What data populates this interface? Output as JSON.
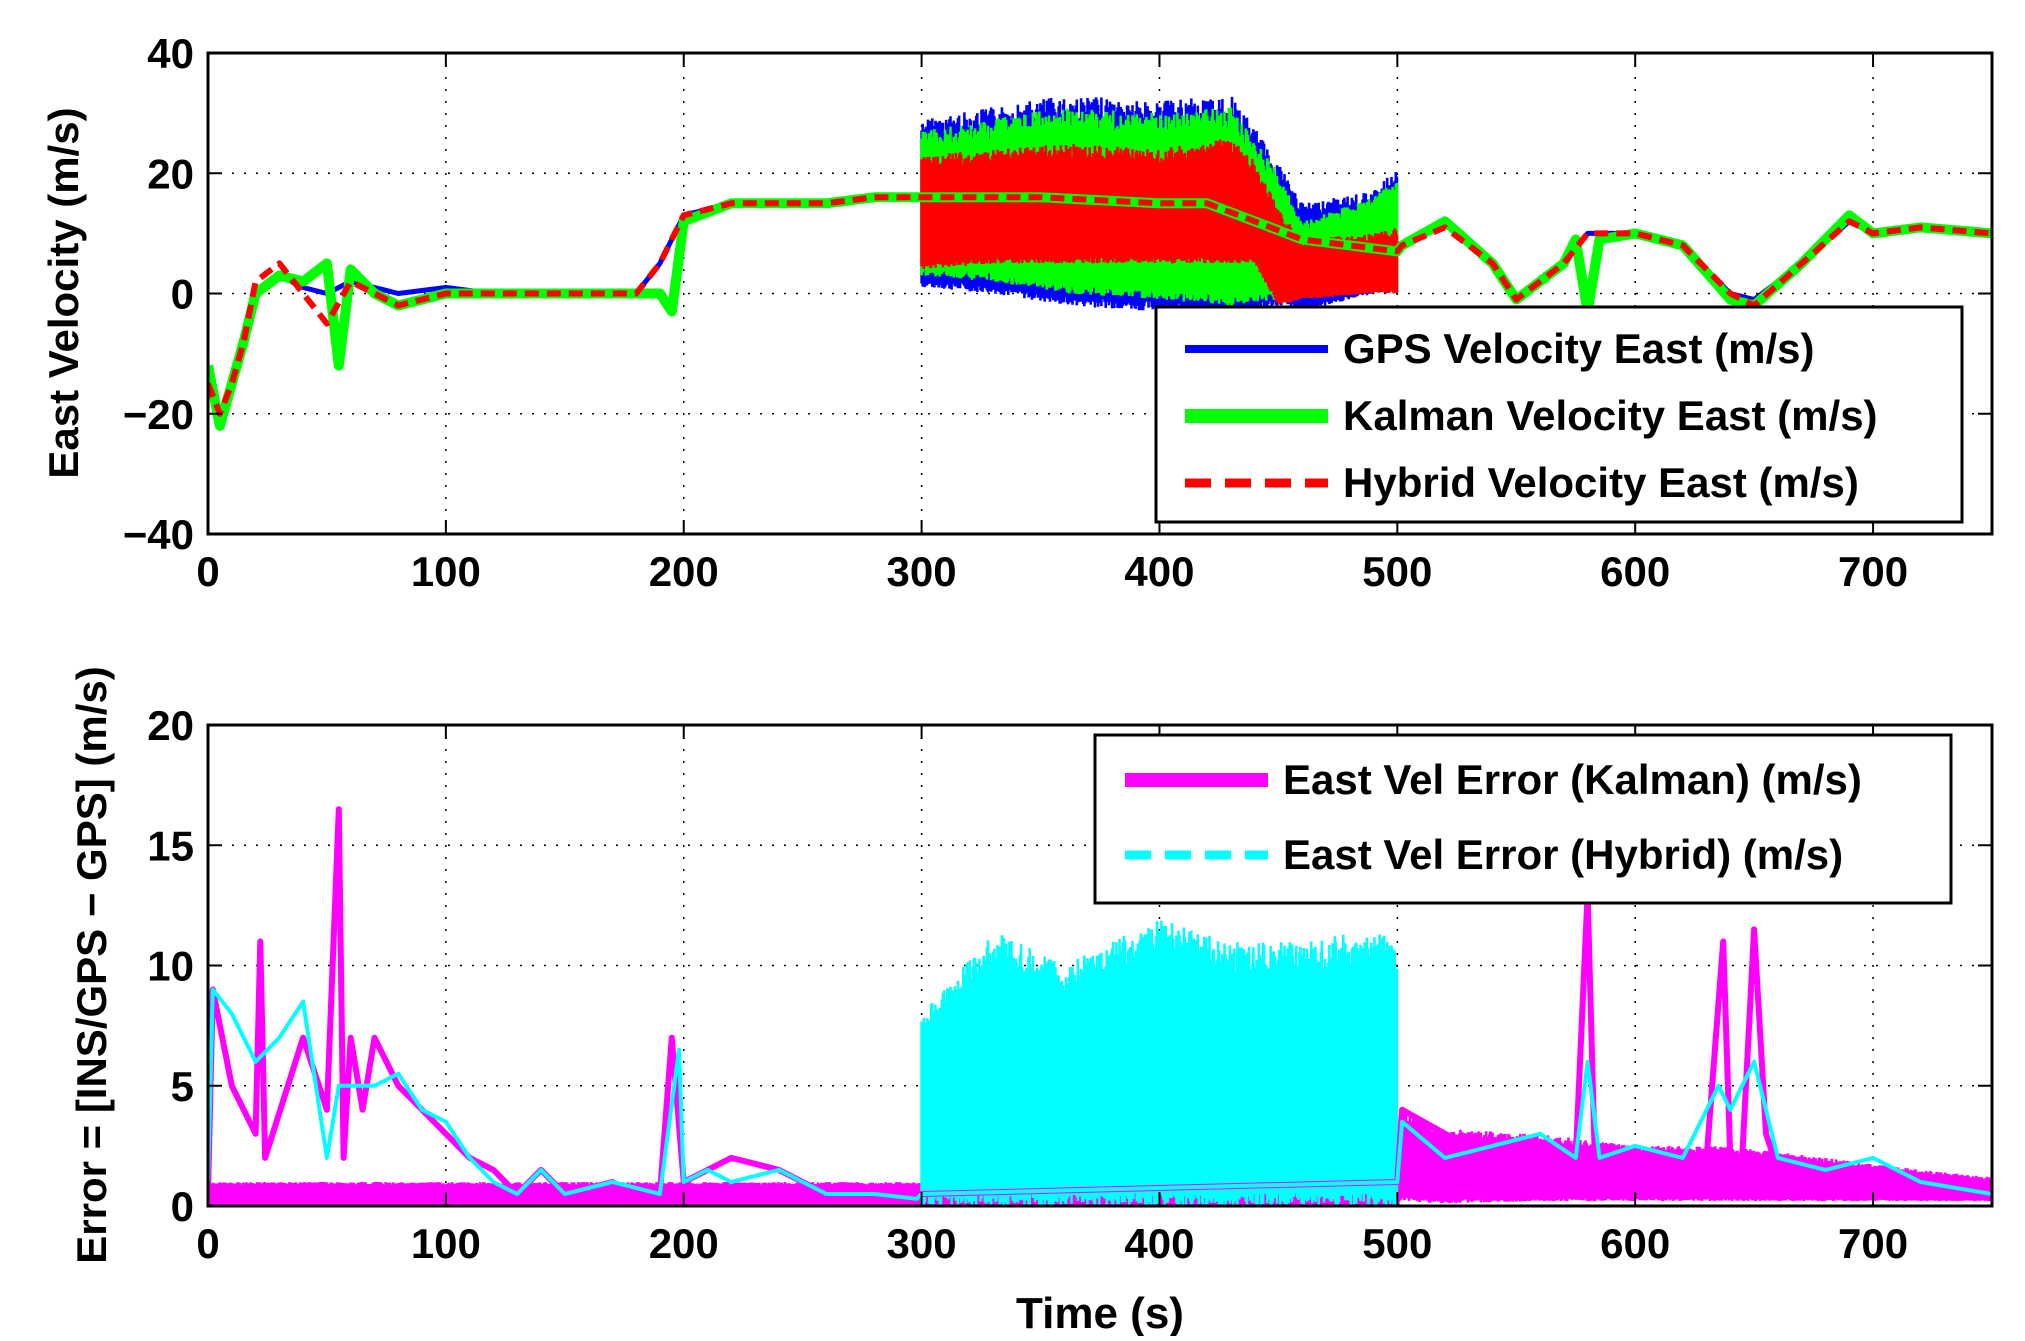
{
  "figure": {
    "background": "#ffffff"
  },
  "chart_data": [
    {
      "type": "line",
      "ylabel": "East Velocity (m/s)",
      "xlabel": "",
      "xlim": [
        0,
        750
      ],
      "ylim": [
        -40,
        40
      ],
      "xticks": [
        0,
        100,
        200,
        300,
        400,
        500,
        600,
        700
      ],
      "yticks": [
        -40,
        -20,
        0,
        20,
        40
      ],
      "xtick_labels": [
        "0",
        "100",
        "200",
        "300",
        "400",
        "500",
        "600",
        "700"
      ],
      "ytick_labels": [
        "−40",
        "−20",
        "0",
        "20",
        "40"
      ],
      "grid": true,
      "legend_position": "lower-right",
      "legend": [
        {
          "label": "GPS Velocity East (m/s)",
          "color": "#0000ff",
          "style": "solid"
        },
        {
          "label": "Kalman Velocity East (m/s)",
          "color": "#00ff00",
          "style": "solid"
        },
        {
          "label": "Hybrid Velocity East (m/s)",
          "color": "#ff0000",
          "style": "dashed"
        }
      ],
      "series": [
        {
          "name": "GPS Velocity East (m/s)",
          "color": "#0000ff",
          "width": 5,
          "x": [
            0,
            5,
            10,
            15,
            20,
            30,
            40,
            50,
            60,
            70,
            80,
            100,
            120,
            150,
            180,
            190,
            200,
            220,
            240,
            260,
            280,
            299,
            300,
            350,
            400,
            420,
            440,
            460,
            480,
            500,
            502,
            520,
            540,
            550,
            570,
            580,
            600,
            620,
            640,
            650,
            670,
            690,
            700,
            720,
            750
          ],
          "y": [
            -15,
            -20,
            -15,
            -8,
            0,
            3,
            1,
            0,
            2,
            1,
            0,
            1,
            0,
            0,
            0,
            5,
            13,
            15,
            15,
            15,
            16,
            16,
            16,
            16,
            15,
            15,
            12,
            9,
            8,
            7,
            8,
            12,
            5,
            -1,
            5,
            10,
            10,
            8,
            0,
            -1,
            5,
            12,
            10,
            11,
            10
          ],
          "band": {
            "x": [
              300,
              330,
              360,
              400,
              430,
              450,
              460,
              490,
              500
            ],
            "upper": [
              29,
              31,
              33,
              32,
              33,
              22,
              15,
              17,
              21
            ],
            "lower": [
              1,
              0,
              -2,
              -3,
              -4,
              -2,
              -3,
              0,
              0
            ]
          }
        },
        {
          "name": "Kalman Velocity East (m/s)",
          "color": "#00ff00",
          "width": 10,
          "x": [
            0,
            5,
            10,
            15,
            20,
            30,
            40,
            50,
            55,
            60,
            70,
            80,
            100,
            120,
            150,
            180,
            190,
            195,
            200,
            220,
            240,
            260,
            280,
            299,
            300,
            350,
            400,
            420,
            440,
            460,
            480,
            500,
            502,
            520,
            540,
            550,
            570,
            575,
            580,
            585,
            600,
            620,
            640,
            650,
            670,
            690,
            700,
            720,
            750
          ],
          "y": [
            -12,
            -22,
            -15,
            -8,
            0,
            3,
            2,
            5,
            -12,
            4,
            0,
            -2,
            0,
            0,
            0,
            0,
            0,
            -3,
            12,
            15,
            15,
            15,
            16,
            16,
            16,
            16,
            15,
            15,
            12,
            9,
            8,
            7,
            8,
            12,
            5,
            -1,
            5,
            9,
            -3,
            9,
            10,
            8,
            -1,
            -2,
            5,
            13,
            10,
            11,
            10
          ],
          "band": {
            "x": [
              300,
              330,
              360,
              400,
              430,
              450,
              460,
              490,
              500
            ],
            "upper": [
              27,
              29,
              31,
              30,
              31,
              20,
              12,
              16,
              19
            ],
            "lower": [
              3,
              2,
              0,
              -1,
              -2,
              -1,
              -1,
              1,
              1
            ]
          }
        },
        {
          "name": "Hybrid Velocity East (m/s)",
          "color": "#ff0000",
          "width": 6,
          "dashed": true,
          "x": [
            0,
            5,
            10,
            15,
            20,
            30,
            40,
            50,
            60,
            70,
            80,
            100,
            120,
            150,
            180,
            190,
            200,
            220,
            240,
            260,
            280,
            299,
            300,
            350,
            400,
            420,
            440,
            460,
            480,
            500,
            502,
            520,
            540,
            550,
            570,
            580,
            600,
            620,
            640,
            650,
            670,
            690,
            700,
            720,
            750
          ],
          "y": [
            -15,
            -20,
            -15,
            -8,
            2,
            5,
            0,
            -5,
            2,
            0,
            -2,
            0,
            0,
            0,
            0,
            5,
            13,
            15,
            15,
            15,
            16,
            16,
            16,
            16,
            15,
            15,
            12,
            9,
            8,
            7,
            8,
            11,
            5,
            -1,
            5,
            10,
            10,
            8,
            0,
            -2,
            5,
            12,
            10,
            11,
            10
          ],
          "band": {
            "x": [
              300,
              330,
              360,
              400,
              430,
              440,
              450,
              460,
              490,
              500
            ],
            "upper": [
              23,
              24,
              25,
              24,
              26,
              22,
              14,
              9,
              10,
              11
            ],
            "lower": [
              4,
              5,
              5,
              5,
              5,
              5,
              -2,
              -1,
              0,
              0
            ]
          }
        }
      ]
    },
    {
      "type": "line",
      "ylabel": "Error = [INS/GPS − GPS] (m/s)",
      "xlabel": "Time (s)",
      "xlim": [
        0,
        750
      ],
      "ylim": [
        0,
        20
      ],
      "xticks": [
        0,
        100,
        200,
        300,
        400,
        500,
        600,
        700
      ],
      "yticks": [
        0,
        5,
        10,
        15,
        20
      ],
      "xtick_labels": [
        "0",
        "100",
        "200",
        "300",
        "400",
        "500",
        "600",
        "700"
      ],
      "ytick_labels": [
        "0",
        "5",
        "10",
        "15",
        "20"
      ],
      "grid": true,
      "legend_position": "top-right",
      "legend": [
        {
          "label": "East Vel Error (Kalman) (m/s)",
          "color": "#ff00ff",
          "style": "solid"
        },
        {
          "label": "East Vel Error (Hybrid) (m/s)",
          "color": "#00ffff",
          "style": "dashed"
        }
      ],
      "series": [
        {
          "name": "East Vel Error (Kalman) (m/s)",
          "color": "#ff00ff",
          "width": 6,
          "x": [
            0,
            2,
            10,
            20,
            22,
            24,
            40,
            50,
            55,
            57,
            60,
            65,
            70,
            80,
            100,
            110,
            120,
            130,
            140,
            150,
            170,
            180,
            190,
            195,
            200,
            210,
            220,
            240,
            260,
            280,
            298,
            300,
            500,
            502,
            520,
            540,
            560,
            575,
            580,
            583,
            590,
            600,
            620,
            630,
            637,
            640,
            645,
            650,
            655,
            660,
            680,
            700,
            720,
            750
          ],
          "y": [
            0.5,
            9,
            5,
            3,
            11,
            2,
            7,
            4,
            16.5,
            2,
            7,
            4,
            7,
            5,
            3,
            2,
            1.5,
            0.5,
            1.5,
            0.5,
            1,
            0.5,
            0.5,
            7,
            1,
            1.5,
            2,
            1.5,
            0.5,
            0.5,
            0.3,
            0.5,
            1,
            4,
            3,
            2,
            2.5,
            2,
            13,
            2,
            2.5,
            2,
            2,
            2,
            11,
            2,
            2,
            11.5,
            3,
            1.5,
            1,
            1.5,
            1,
            1
          ],
          "band": {
            "x": [
              0,
              50,
              100,
              300,
              500,
              502,
              520,
              560,
              600,
              640,
              680,
              720,
              750
            ],
            "upper": [
              1,
              1,
              1,
              1,
              1,
              4,
              3.2,
              3,
              2.5,
              2.5,
              2,
              1.5,
              1.2
            ],
            "lower": [
              0,
              0,
              0,
              0,
              0,
              0.2,
              0.1,
              0.2,
              0.2,
              0.2,
              0.2,
              0.2,
              0.2
            ]
          }
        },
        {
          "name": "East Vel Error (Hybrid) (m/s)",
          "color": "#00ffff",
          "width": 4,
          "x": [
            0,
            2,
            10,
            20,
            30,
            40,
            50,
            55,
            60,
            70,
            80,
            90,
            100,
            110,
            120,
            130,
            140,
            150,
            170,
            190,
            198,
            200,
            210,
            220,
            240,
            260,
            280,
            298,
            300,
            500,
            502,
            520,
            540,
            560,
            575,
            580,
            585,
            600,
            620,
            635,
            640,
            650,
            660,
            680,
            700,
            720,
            750
          ],
          "y": [
            1,
            9,
            8,
            6,
            7,
            8.5,
            2,
            5,
            5,
            5,
            5.5,
            4,
            3.5,
            2,
            1,
            0.5,
            1.5,
            0.5,
            1,
            0.5,
            6.5,
            1,
            1.5,
            1,
            1.5,
            0.5,
            0.5,
            0.3,
            0.5,
            1,
            3.5,
            2,
            2.5,
            3,
            2,
            6,
            2,
            2.5,
            2,
            5,
            4,
            6,
            2,
            1.5,
            2,
            1,
            0.5
          ],
          "band": {
            "x": [
              300,
              330,
              360,
              400,
              430,
              460,
              490,
              500
            ],
            "upper": [
              8,
              11.5,
              10,
              12,
              11,
              11,
              11.5,
              11
            ],
            "lower": [
              0,
              0,
              0,
              0,
              0,
              0,
              0,
              0
            ]
          }
        }
      ]
    }
  ]
}
